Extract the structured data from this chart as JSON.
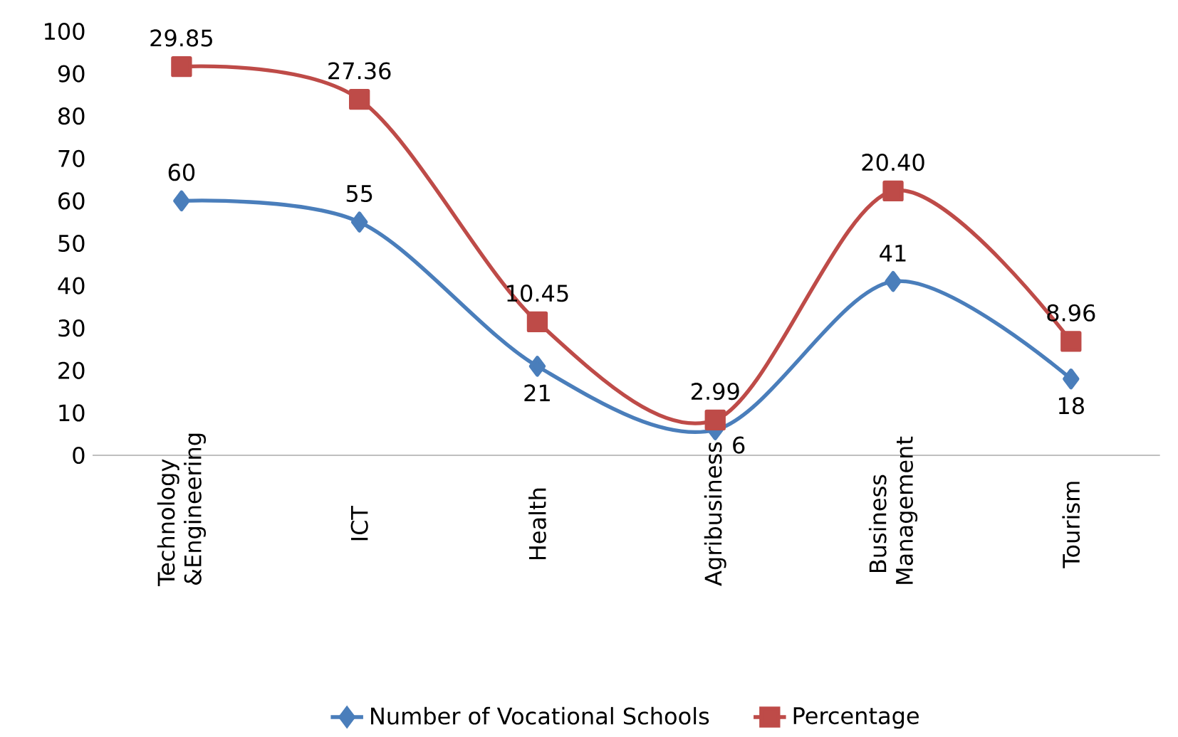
{
  "chart_data": {
    "type": "line",
    "categories": [
      "Technology &Engineering",
      "ICT",
      "Health",
      "Agribusiness",
      "Business Management",
      "Tourism"
    ],
    "series": [
      {
        "name": "Number of Vocational Schools",
        "color": "#4a7ebb",
        "marker": "diamond",
        "values": [
          60,
          55,
          21,
          6,
          41,
          18
        ],
        "value_labels": [
          "60",
          "55",
          "21",
          "6",
          "41",
          "18"
        ]
      },
      {
        "name": "Percentage",
        "color": "#be4b48",
        "marker": "square",
        "axis": "y2",
        "values": [
          29.85,
          27.36,
          10.45,
          2.99,
          20.4,
          8.96
        ],
        "value_labels": [
          "29.85",
          "27.36",
          "10.45",
          "2.99",
          "20.40",
          "8.96"
        ]
      }
    ],
    "ylim": [
      0,
      100
    ],
    "yticks": [
      0,
      10,
      20,
      30,
      40,
      50,
      60,
      70,
      80,
      90,
      100
    ],
    "tick_labels": "xy",
    "grid": false,
    "legend": "bottom",
    "line_style": "solid"
  }
}
